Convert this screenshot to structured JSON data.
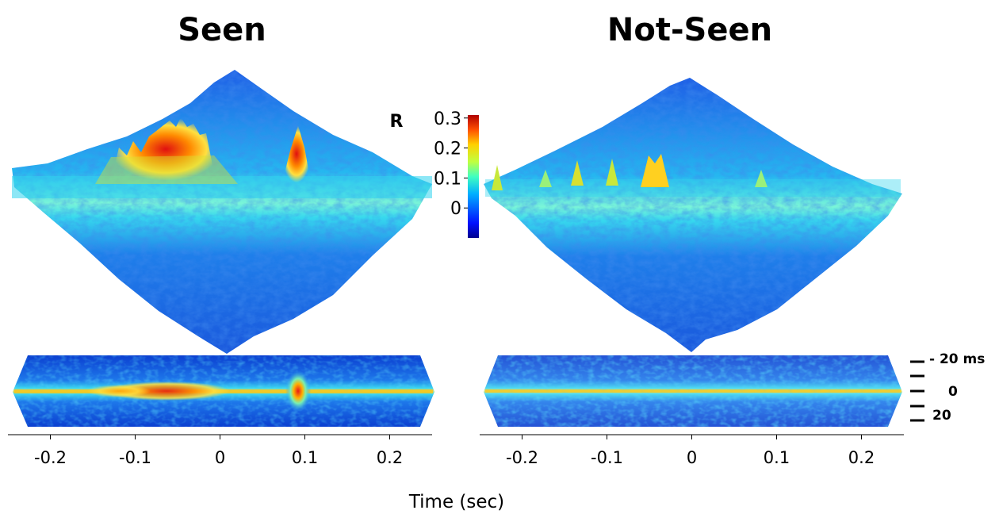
{
  "chart_data": [
    {
      "type": "heatmap",
      "title": "Seen",
      "description_of_marks": "3D surface and 2D map of correlation R over time and lag",
      "x": {
        "label": "Time (sec)",
        "ticks": [
          -0.2,
          -0.1,
          0,
          0.1,
          0.2
        ],
        "tick_labels": [
          "-0.2",
          "-0.1",
          "0",
          "0.1",
          "0.2"
        ],
        "range": [
          -0.25,
          0.25
        ]
      },
      "lag": {
        "tick_labels": [
          "- 20 ms",
          "0",
          "20"
        ],
        "range_ms": [
          -25,
          25
        ]
      },
      "peaks": [
        {
          "time": -0.12,
          "R": 0.18
        },
        {
          "time": -0.08,
          "R": 0.22
        },
        {
          "time": -0.06,
          "R": 0.26
        },
        {
          "time": -0.05,
          "R": 0.3
        },
        {
          "time": -0.04,
          "R": 0.27
        },
        {
          "time": -0.02,
          "R": 0.2
        },
        {
          "time": 0.09,
          "R": 0.3
        }
      ],
      "baseline_R": 0.1
    },
    {
      "type": "heatmap",
      "title": "Not-Seen",
      "x": {
        "label": "Time (sec)",
        "ticks": [
          -0.2,
          -0.1,
          0,
          0.1,
          0.2
        ],
        "tick_labels": [
          "-0.2",
          "-0.1",
          "0",
          "0.1",
          "0.2"
        ],
        "range": [
          -0.25,
          0.25
        ]
      },
      "lag": {
        "tick_labels": [
          "- 20 ms",
          "0",
          "20"
        ],
        "range_ms": [
          -25,
          25
        ]
      },
      "peaks": [
        {
          "time": -0.23,
          "R": 0.15
        },
        {
          "time": -0.14,
          "R": 0.16
        },
        {
          "time": -0.1,
          "R": 0.15
        },
        {
          "time": -0.05,
          "R": 0.17
        },
        {
          "time": -0.04,
          "R": 0.16
        }
      ],
      "baseline_R": 0.1
    }
  ],
  "colorbar": {
    "label": "R",
    "ticks": [
      0.3,
      0.2,
      0.1,
      0
    ],
    "tick_labels": [
      "0.3",
      "0.2",
      "0.1",
      "0"
    ],
    "range": [
      -0.1,
      0.31
    ],
    "colormap": "jet"
  },
  "xaxis_title": "Time (sec)",
  "lag_labels": [
    "- 20 ms",
    "0",
    "20"
  ],
  "colors": {
    "surface_base": "#1a5be0",
    "ridge": "#22d8e8",
    "peak": "#e8231a",
    "map_base": "#0a3fcf"
  }
}
